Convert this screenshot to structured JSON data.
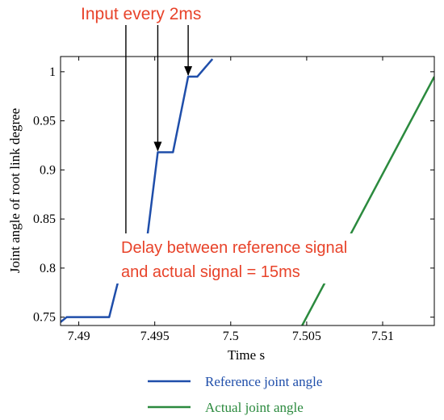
{
  "chart_data": {
    "type": "line",
    "xlabel": "Time s",
    "ylabel": "Joint angle of root link degree",
    "xlim": [
      7.4888,
      7.5134
    ],
    "ylim": [
      0.7415,
      1.0155
    ],
    "x_ticks": [
      7.49,
      7.495,
      7.5,
      7.505,
      7.51
    ],
    "x_tick_labels": [
      "7.49",
      "7.495",
      "7.5",
      "7.505",
      "7.51"
    ],
    "y_ticks": [
      0.75,
      0.8,
      0.85,
      0.9,
      0.95,
      1.0
    ],
    "y_tick_labels": [
      "0.75",
      "0.8",
      "0.85",
      "0.9",
      "0.95",
      "1"
    ],
    "grid": false,
    "legend_position": "bottom",
    "series": [
      {
        "name": "Reference joint angle",
        "color": "#1f4eaa",
        "x": [
          7.4888,
          7.4892,
          7.492,
          7.4931,
          7.4944,
          7.4952,
          7.4962,
          7.4972,
          7.4978,
          7.4988
        ],
        "y": [
          0.745,
          0.75,
          0.75,
          0.818,
          0.818,
          0.918,
          0.918,
          0.995,
          0.995,
          1.013
        ]
      },
      {
        "name": "Actual joint angle",
        "color": "#2b8a3e",
        "x": [
          7.5047,
          7.5134
        ],
        "y": [
          0.7415,
          0.995
        ]
      }
    ],
    "annotations": {
      "top_label": "Input every 2ms",
      "delay_line1": "Delay between reference signal",
      "delay_line2": "and actual signal = 15ms",
      "annotation_color": "#e8432a",
      "input_arrows": [
        {
          "x": 7.4931,
          "y": 0.818
        },
        {
          "x": 7.4952,
          "y": 0.918
        },
        {
          "x": 7.4972,
          "y": 0.995
        }
      ],
      "delay_arrow": {
        "x_start": 7.4934,
        "x_end": 7.5081,
        "y": 0.818
      }
    }
  }
}
